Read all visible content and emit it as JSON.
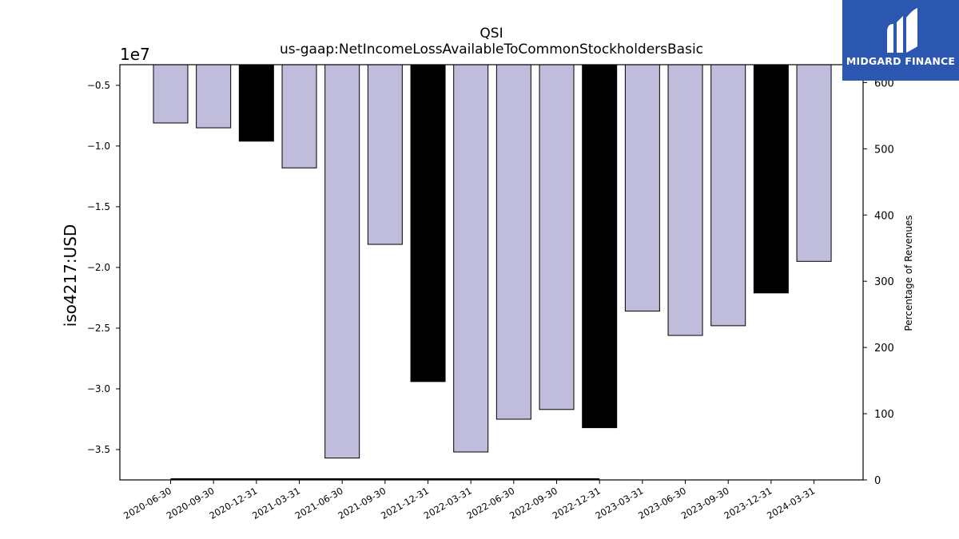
{
  "chart_data": {
    "type": "bar",
    "title": "QSI",
    "subtitle": "us-gaap:NetIncomeLossAvailableToCommonStockholdersBasic",
    "ylabel": "iso4217:USD",
    "y_offset_label": "1e7",
    "y2label": "Percentage of Revenues",
    "categories": [
      "2020-06-30",
      "2020-09-30",
      "2020-12-31",
      "2021-03-31",
      "2021-06-30",
      "2021-09-30",
      "2021-12-31",
      "2022-03-31",
      "2022-06-30",
      "2022-09-30",
      "2022-12-31",
      "2023-03-31",
      "2023-06-30",
      "2023-09-30",
      "2023-12-31",
      "2024-03-31"
    ],
    "values": [
      -8100000,
      -8500000,
      -9600000,
      -11800000,
      -35700000,
      -18100000,
      -29400000,
      -35200000,
      -32500000,
      -31700000,
      -33200000,
      -23600000,
      -25600000,
      -24800000,
      -22100000,
      -19500000
    ],
    "bar_kind": [
      "quarter",
      "quarter",
      "annual",
      "quarter",
      "quarter",
      "quarter",
      "annual",
      "quarter",
      "quarter",
      "quarter",
      "annual",
      "quarter",
      "quarter",
      "quarter",
      "annual",
      "quarter"
    ],
    "colors": {
      "quarter": "#bfbcdc",
      "annual": "#000000",
      "edge": "#000000"
    },
    "ylim": [
      -37500000,
      -3300000
    ],
    "yticks": [
      -5000000,
      -10000000,
      -15000000,
      -20000000,
      -25000000,
      -30000000,
      -35000000
    ],
    "ytick_labels": [
      "−0.5",
      "−1.0",
      "−1.5",
      "−2.0",
      "−2.5",
      "−3.0",
      "−3.5"
    ],
    "y2lim": [
      0,
      627
    ],
    "y2ticks": [
      0,
      100,
      200,
      300,
      400,
      500,
      600
    ],
    "y2tick_labels": [
      "0",
      "100",
      "200",
      "300",
      "400",
      "500",
      "600"
    ],
    "y2_line": {
      "x_start": "2020-06-30",
      "x_end": "2022-12-31",
      "value": 0
    }
  },
  "logo": {
    "text": "MIDGARD FINANCE"
  }
}
